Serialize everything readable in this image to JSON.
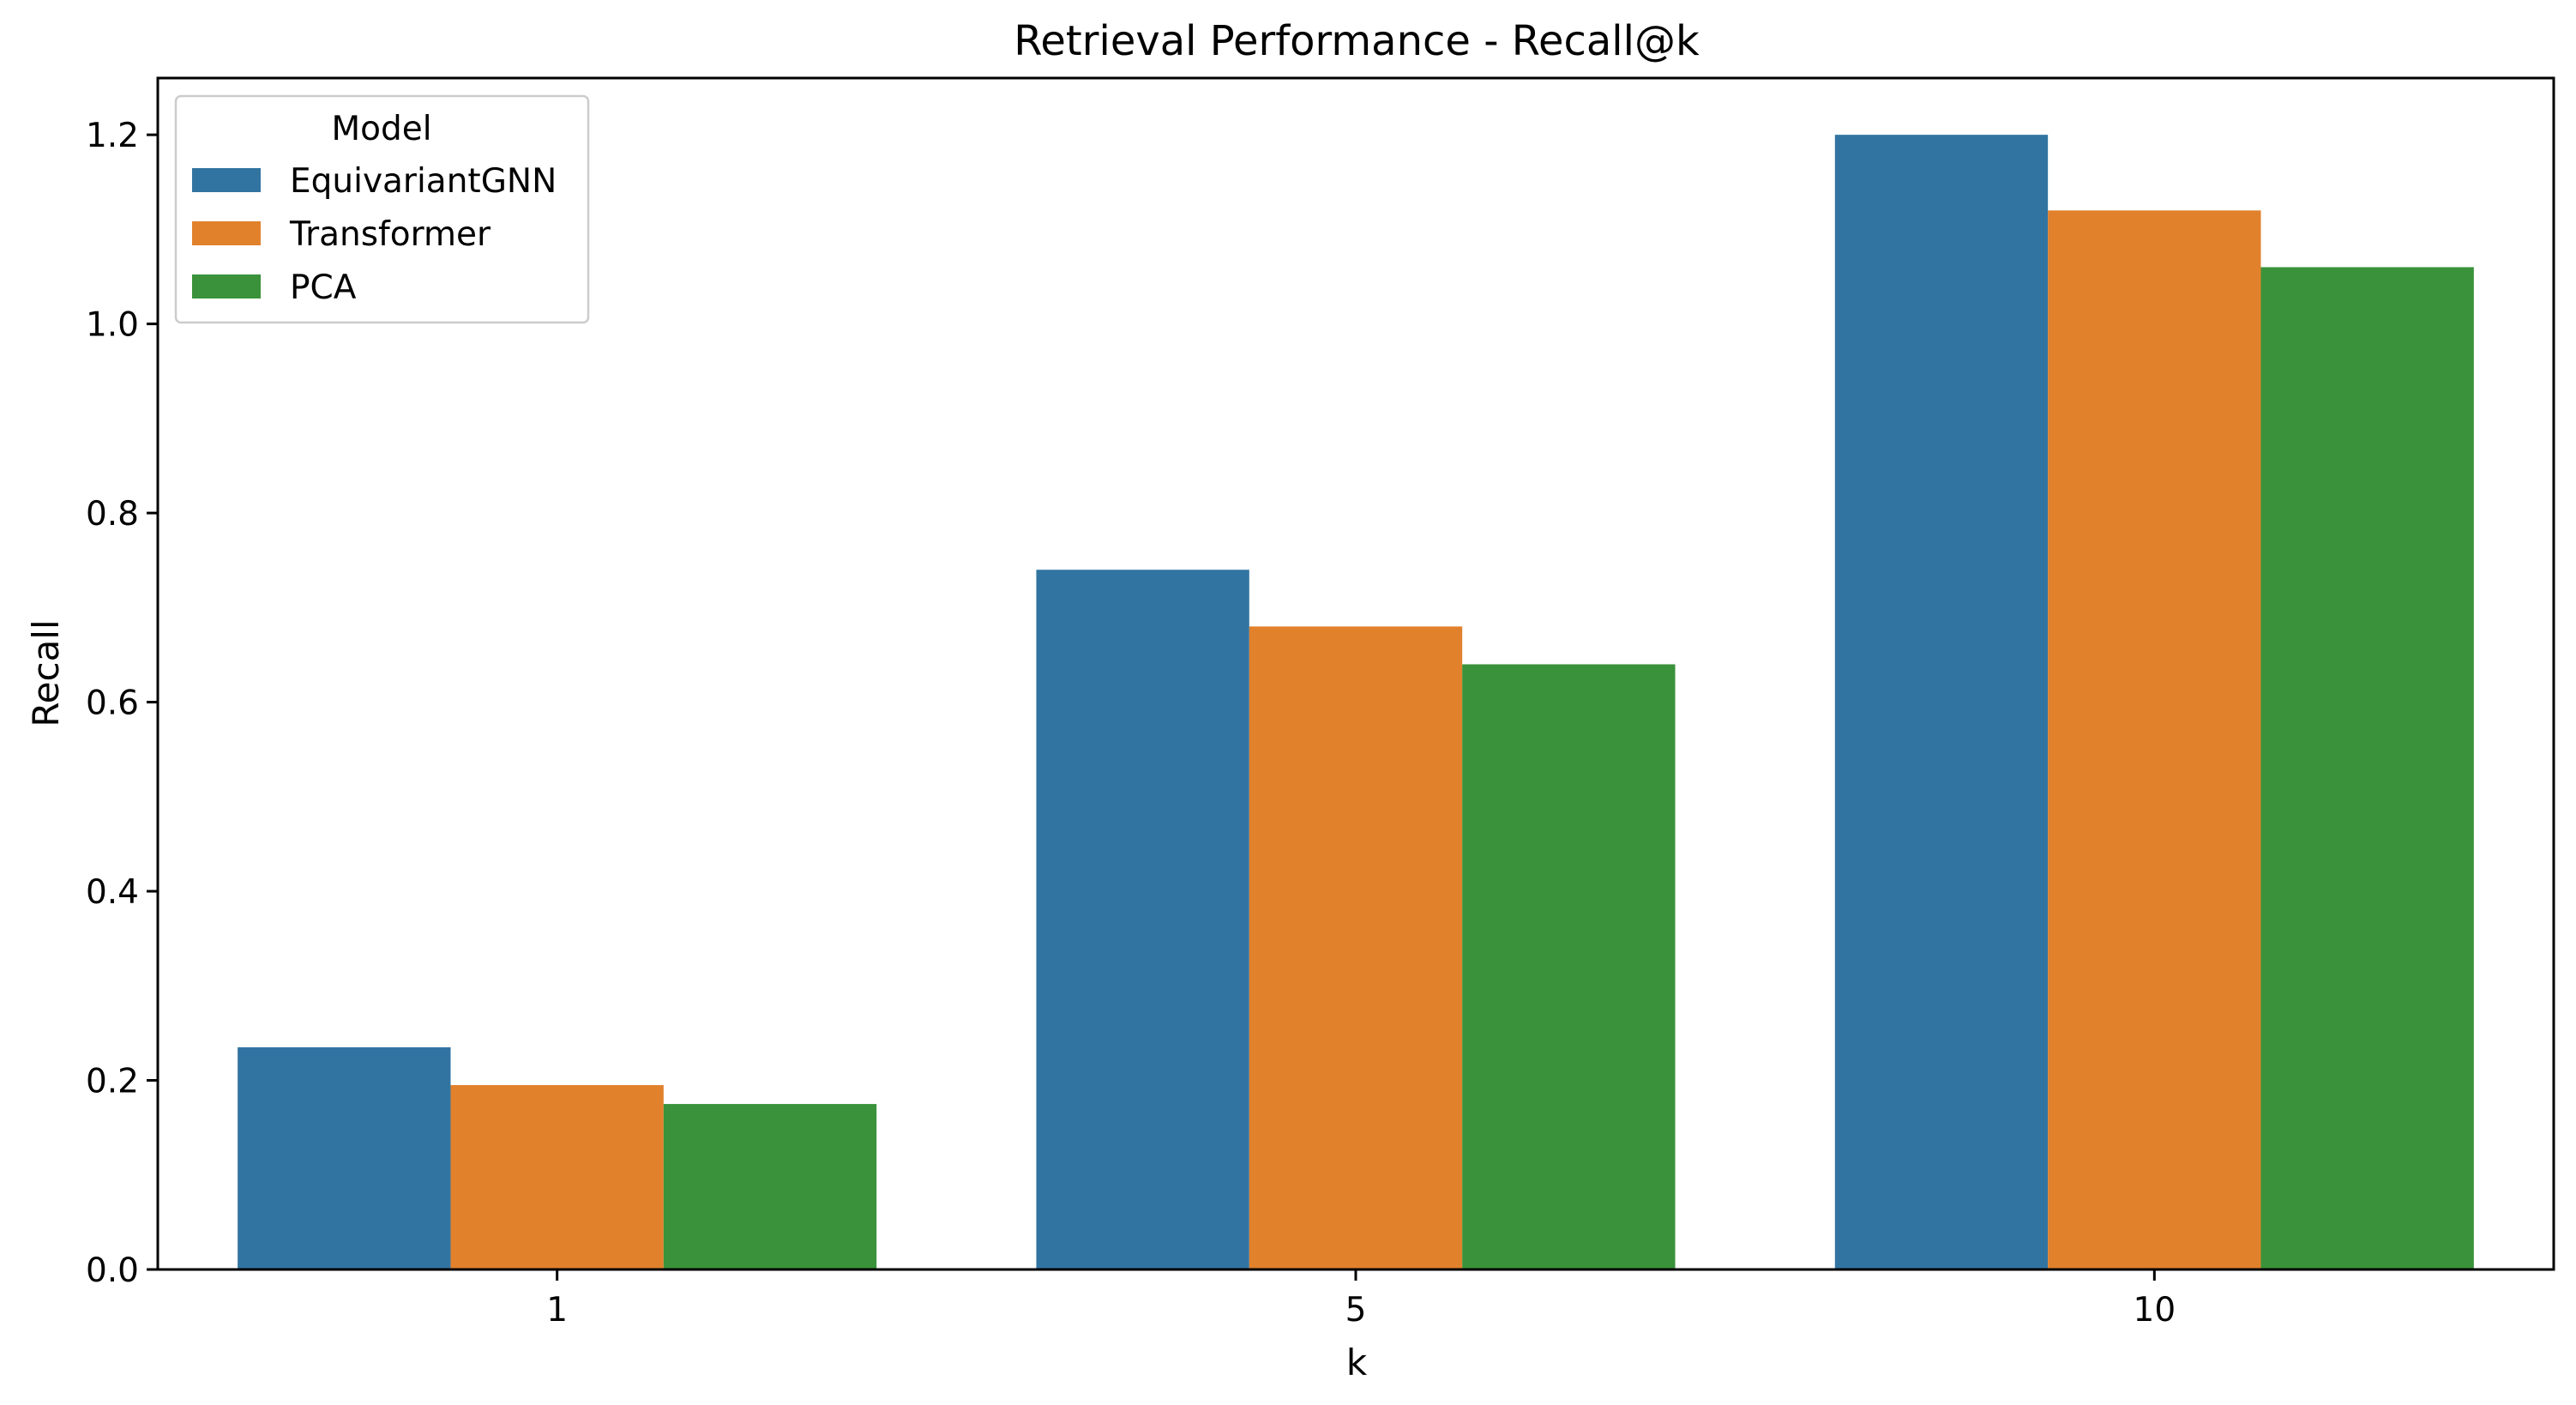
{
  "chart_data": {
    "type": "bar",
    "title": "Retrieval Performance - Recall@k",
    "xlabel": "k",
    "ylabel": "Recall",
    "categories": [
      "1",
      "5",
      "10"
    ],
    "ylim": [
      0,
      1.26
    ],
    "yticks": [
      0.0,
      0.2,
      0.4,
      0.6,
      0.8,
      1.0,
      1.2
    ],
    "ytick_labels": [
      "0.0",
      "0.2",
      "0.4",
      "0.6",
      "0.8",
      "1.0",
      "1.2"
    ],
    "grid": false,
    "legend": {
      "title": "Model",
      "position": "top-left"
    },
    "series": [
      {
        "name": "EquivariantGNN",
        "color": "#3274a1",
        "values": [
          0.235,
          0.74,
          1.2
        ]
      },
      {
        "name": "Transformer",
        "color": "#e1812c",
        "values": [
          0.195,
          0.68,
          1.12
        ]
      },
      {
        "name": "PCA",
        "color": "#3a923a",
        "values": [
          0.175,
          0.64,
          1.06
        ]
      }
    ]
  }
}
